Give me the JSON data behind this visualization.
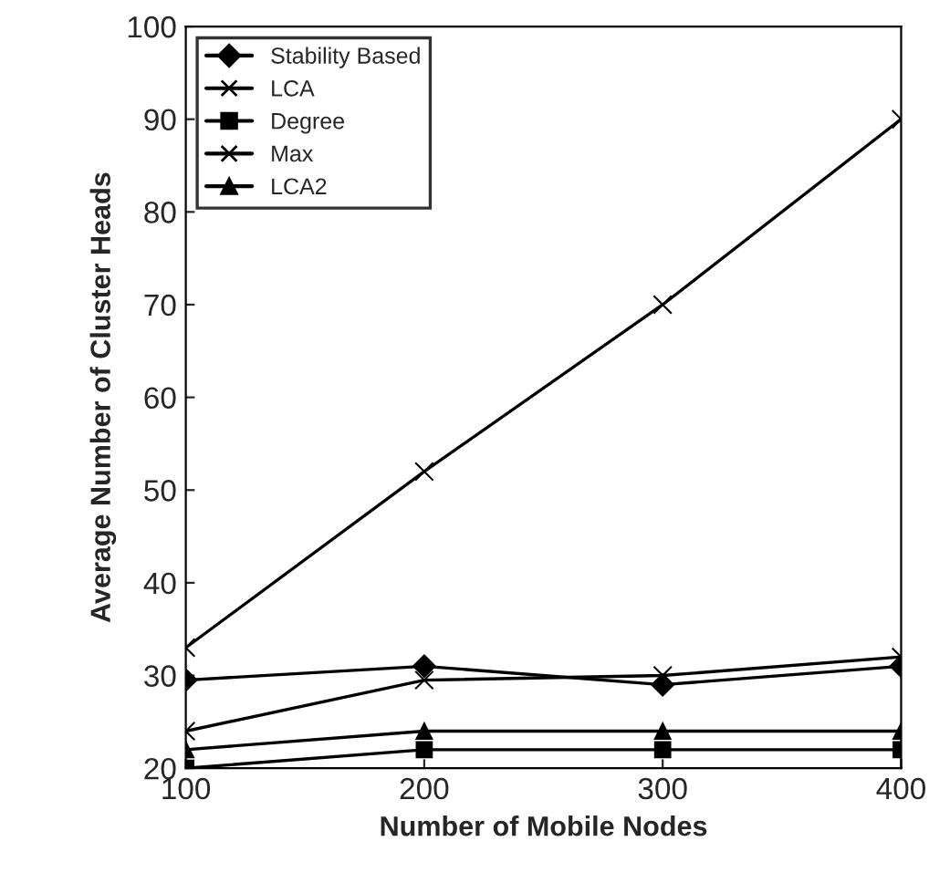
{
  "chart_data": {
    "type": "line",
    "xlabel": "Number of Mobile Nodes",
    "ylabel": "Average Number of Cluster Heads",
    "x": [
      100,
      200,
      300,
      400
    ],
    "series": [
      {
        "name": "Stability Based",
        "color": "#000000",
        "marker": "diamond",
        "values": [
          29.5,
          31,
          29,
          31
        ]
      },
      {
        "name": "LCA",
        "color": "#000000",
        "marker": "cross",
        "values": [
          24,
          29.5,
          30,
          32
        ]
      },
      {
        "name": "Degree",
        "color": "#000000",
        "marker": "square",
        "values": [
          20,
          22,
          22,
          22
        ]
      },
      {
        "name": "Max",
        "color": "#000000",
        "marker": "cross",
        "values": [
          33,
          52,
          70,
          90
        ]
      },
      {
        "name": "LCA2",
        "color": "#000000",
        "marker": "triangle",
        "values": [
          22,
          24,
          24,
          24
        ]
      }
    ],
    "xlim": [
      100,
      400
    ],
    "xticks": [
      100,
      200,
      300,
      400
    ],
    "ylim": [
      20,
      100
    ],
    "yticks": [
      20,
      30,
      40,
      50,
      60,
      70,
      80,
      90,
      100
    ],
    "grid": false,
    "legend": "top left",
    "line_style": "solid"
  }
}
